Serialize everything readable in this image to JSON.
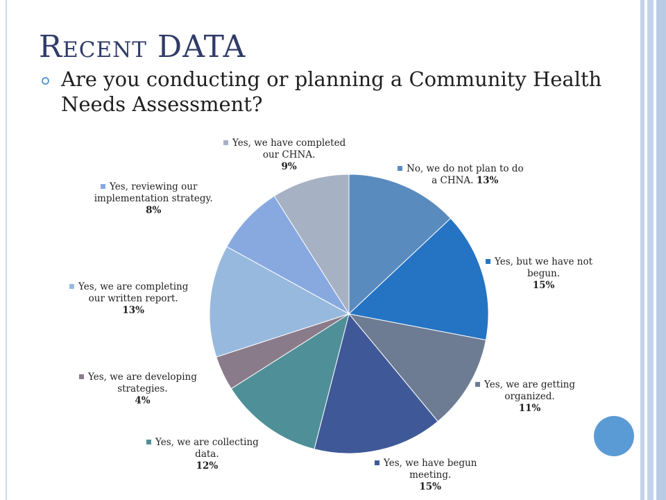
{
  "slide": {
    "title": "Recent DATA",
    "title_small_caps_part": "Recent",
    "title_plain_part": "DATA",
    "bullet": "Are you conducting or planning a Community Health Needs Assessment?"
  },
  "colors": {
    "title": "#303b68",
    "accent": "#5b9bd5",
    "frame": "#c3d3ea"
  },
  "chart_data": {
    "type": "pie",
    "title": "",
    "start_angle_deg": 0,
    "direction": "clockwise",
    "slices": [
      {
        "label_lines": [
          "No, we do not plan to do",
          "a CHNA."
        ],
        "value": 13,
        "pct_text": "13%",
        "color": "#5a8bbf"
      },
      {
        "label_lines": [
          "Yes, but we have not",
          "begun."
        ],
        "value": 15,
        "pct_text": "15%",
        "color": "#2574c4"
      },
      {
        "label_lines": [
          "Yes, we are getting",
          "organized."
        ],
        "value": 11,
        "pct_text": "11%",
        "color": "#6e7c93"
      },
      {
        "label_lines": [
          "Yes, we have begun",
          "meeting."
        ],
        "value": 15,
        "pct_text": "15%",
        "color": "#3f5998"
      },
      {
        "label_lines": [
          "Yes, we are collecting",
          "data."
        ],
        "value": 12,
        "pct_text": "12%",
        "color": "#4f8f98"
      },
      {
        "label_lines": [
          "Yes, we are developing",
          "strategies."
        ],
        "value": 4,
        "pct_text": "4%",
        "color": "#8a7b8a"
      },
      {
        "label_lines": [
          "Yes, we are completing",
          "our written report."
        ],
        "value": 13,
        "pct_text": "13%",
        "color": "#98b9de"
      },
      {
        "label_lines": [
          "Yes, reviewing our",
          "implementation strategy."
        ],
        "value": 8,
        "pct_text": "8%",
        "color": "#88a9e0"
      },
      {
        "label_lines": [
          "Yes, we have completed",
          "our CHNA."
        ],
        "value": 9,
        "pct_text": "9%",
        "color": "#a6b1c4"
      }
    ]
  }
}
